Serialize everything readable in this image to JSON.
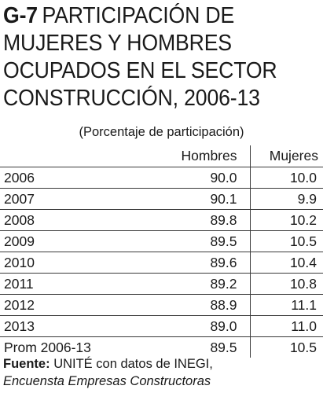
{
  "header": {
    "code": "G-7",
    "title": "PARTICIPACIÓN DE MUJERES Y HOMBRES OCUPADOS EN EL SECTOR CONSTRUCCIÓN, 2006-13"
  },
  "chart_data": {
    "type": "table",
    "title": "PARTICIPACIÓN DE MUJERES Y HOMBRES OCUPADOS EN EL SECTOR CONSTRUCCIÓN, 2006-13",
    "subtitle": "(Porcentaje de participación)",
    "columns": [
      "Hombres",
      "Mujeres"
    ],
    "rows": [
      {
        "label": "2006",
        "hombres": "90.0",
        "mujeres": "10.0"
      },
      {
        "label": "2007",
        "hombres": "90.1",
        "mujeres": "9.9"
      },
      {
        "label": "2008",
        "hombres": "89.8",
        "mujeres": "10.2"
      },
      {
        "label": "2009",
        "hombres": "89.5",
        "mujeres": "10.5"
      },
      {
        "label": "2010",
        "hombres": "89.6",
        "mujeres": "10.4"
      },
      {
        "label": "2011",
        "hombres": "89.2",
        "mujeres": "10.8"
      },
      {
        "label": "2012",
        "hombres": "88.9",
        "mujeres": "11.1"
      },
      {
        "label": "2013",
        "hombres": "89.0",
        "mujeres": "11.0"
      },
      {
        "label": "Prom 2006-13",
        "hombres": "89.5",
        "mujeres": "10.5"
      }
    ]
  },
  "source": {
    "label": "Fuente:",
    "text": "UNITÉ con datos de INEGI,",
    "italic": "Encuensta Empresas Constructoras"
  }
}
